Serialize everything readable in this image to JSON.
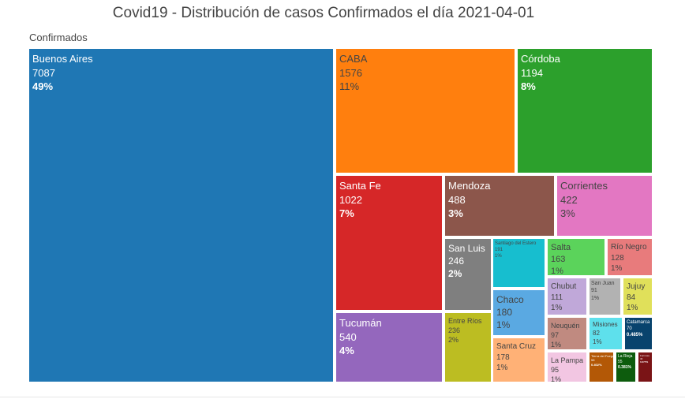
{
  "chart_data": {
    "type": "treemap",
    "title": "Covid19 - Distribución de casos Confirmados el día  2021-04-01",
    "root_label": "Confirmados",
    "items": [
      {
        "name": "Buenos Aires",
        "value": 7087,
        "pct": "49%",
        "color": "#1f77b4",
        "text_color": "#ffffff"
      },
      {
        "name": "CABA",
        "value": 1576,
        "pct": "11%",
        "color": "#ff7f0e",
        "text_color": "#444444"
      },
      {
        "name": "Córdoba",
        "value": 1194,
        "pct": "8%",
        "color": "#2ca02c",
        "text_color": "#ffffff"
      },
      {
        "name": "Santa Fe",
        "value": 1022,
        "pct": "7%",
        "color": "#d62728",
        "text_color": "#ffffff"
      },
      {
        "name": "Mendoza",
        "value": 488,
        "pct": "3%",
        "color": "#8c564b",
        "text_color": "#ffffff"
      },
      {
        "name": "Corrientes",
        "value": 422,
        "pct": "3%",
        "color": "#e377c2",
        "text_color": "#444444"
      },
      {
        "name": "Tucumán",
        "value": 540,
        "pct": "4%",
        "color": "#9467bd",
        "text_color": "#ffffff"
      },
      {
        "name": "San Luis",
        "value": 246,
        "pct": "2%",
        "color": "#7f7f7f",
        "text_color": "#ffffff"
      },
      {
        "name": "Santiago del Estero",
        "value": 191,
        "pct": "1%",
        "color": "#17becf",
        "text_color": "#444444"
      },
      {
        "name": "Salta",
        "value": 163,
        "pct": "1%",
        "color": "#5bd35b",
        "text_color": "#444444"
      },
      {
        "name": "Río Negro",
        "value": 128,
        "pct": "1%",
        "color": "#e87b7c",
        "text_color": "#444444"
      },
      {
        "name": "Chaco",
        "value": 180,
        "pct": "1%",
        "color": "#5aa9e2",
        "text_color": "#444444"
      },
      {
        "name": "Chubut",
        "value": 111,
        "pct": "1%",
        "color": "#c0a8d9",
        "text_color": "#444444"
      },
      {
        "name": "San Juan",
        "value": 91,
        "pct": "1%",
        "color": "#b2b2b2",
        "text_color": "#444444"
      },
      {
        "name": "Jujuy",
        "value": 84,
        "pct": "1%",
        "color": "#e0e05a",
        "text_color": "#444444"
      },
      {
        "name": "Entre Ríos",
        "value": 236,
        "pct": "2%",
        "color": "#bcbd22",
        "text_color": "#444444"
      },
      {
        "name": "Neuquén",
        "value": 97,
        "pct": "1%",
        "color": "#c08a80",
        "text_color": "#444444"
      },
      {
        "name": "Misiones",
        "value": 82,
        "pct": "1%",
        "color": "#5ee0ec",
        "text_color": "#444444"
      },
      {
        "name": "Catamarca",
        "value": 70,
        "pct": "0.485%",
        "color": "#08436d",
        "text_color": "#ffffff"
      },
      {
        "name": "Santa Cruz",
        "value": 178,
        "pct": "1%",
        "color": "#ffb176",
        "text_color": "#444444"
      },
      {
        "name": "La Pampa",
        "value": 95,
        "pct": "1%",
        "color": "#f2c6e2",
        "text_color": "#444444"
      },
      {
        "name": "Tierra del Fuego",
        "value": 58,
        "pct": "0.402%",
        "color": "#b35806",
        "text_color": "#ffffff"
      },
      {
        "name": "La Rioja",
        "value": 55,
        "pct": "0.381%",
        "color": "#0d5c0d",
        "text_color": "#ffffff"
      },
      {
        "name": "Formosa",
        "value": 40,
        "pct": "0.277%",
        "color": "#7a1416",
        "text_color": "#ffffff"
      }
    ]
  }
}
